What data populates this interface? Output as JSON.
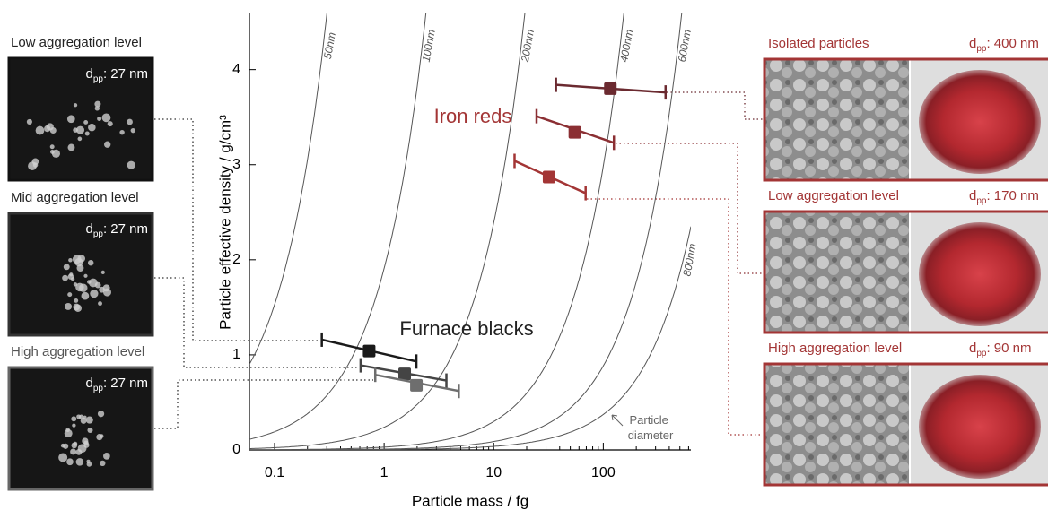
{
  "chart_data": {
    "type": "errorpoints",
    "xlabel": "Particle mass / fg",
    "ylabel": "Particle effective density / g/cm³",
    "xlog": true,
    "xlim": [
      0.059,
      630
    ],
    "ylim": [
      0,
      4.6
    ],
    "xticks": [
      0.1,
      1,
      10,
      100
    ],
    "xminorticks": [
      0.2,
      0.3,
      0.4,
      0.5,
      0.6,
      0.7,
      0.8,
      0.9,
      2,
      3,
      4,
      5,
      6,
      7,
      8,
      9,
      20,
      30,
      40,
      50,
      60,
      70,
      80,
      90,
      200,
      300,
      400,
      500,
      600
    ],
    "yticks": [
      0,
      1,
      2,
      3,
      4
    ],
    "diameters": [
      {
        "value": 50,
        "label": "50nm"
      },
      {
        "value": 100,
        "label": "100nm"
      },
      {
        "value": 200,
        "label": "200nm"
      },
      {
        "value": 400,
        "label": "400nm"
      },
      {
        "value": 600,
        "label": "600nm"
      },
      {
        "value": 800,
        "label": "800nm"
      }
    ],
    "annotation": "Particle diameter",
    "series": [
      {
        "name": "Furnace blacks",
        "label_color": "#222222",
        "points": [
          {
            "x": 0.73,
            "y": 1.04,
            "xerr": [
              0.27,
              1.97
            ],
            "yerr": [
              1.16,
              0.93
            ],
            "color": "#1a1a1a"
          },
          {
            "x": 1.54,
            "y": 0.8,
            "xerr": [
              0.61,
              3.7
            ],
            "yerr": [
              0.89,
              0.73
            ],
            "color": "#444444"
          },
          {
            "x": 1.97,
            "y": 0.68,
            "xerr": [
              0.83,
              4.8
            ],
            "yerr": [
              0.79,
              0.62
            ],
            "color": "#6e6e6e"
          }
        ]
      },
      {
        "name": "Iron reds",
        "label_color": "#a33535",
        "points": [
          {
            "x": 116,
            "y": 3.8,
            "xerr": [
              37,
              370
            ],
            "yerr": [
              3.84,
              3.76
            ],
            "color": "#6b2a30"
          },
          {
            "x": 55,
            "y": 3.34,
            "xerr": [
              24.6,
              125
            ],
            "yerr": [
              3.51,
              3.23
            ],
            "color": "#8b2f33"
          },
          {
            "x": 32,
            "y": 2.87,
            "xerr": [
              15.5,
              69
            ],
            "yerr": [
              3.04,
              2.7
            ],
            "color": "#a33535"
          }
        ]
      }
    ]
  },
  "left_panels": [
    {
      "label": "Low aggregation level",
      "d": "d",
      "sub": "pp",
      "rest": ": 27 nm"
    },
    {
      "label": "Mid aggregation level",
      "d": "d",
      "sub": "pp",
      "rest": ": 27 nm"
    },
    {
      "label": "High aggregation level",
      "d": "d",
      "sub": "pp",
      "rest": ": 27 nm"
    }
  ],
  "right_panels": [
    {
      "label": "Isolated particles",
      "d": "d",
      "sub": "pp",
      "rest": ": 400 nm"
    },
    {
      "label": "Low aggregation level",
      "d": "d",
      "sub": "pp",
      "rest": ": 170 nm"
    },
    {
      "label": "High aggregation level",
      "d": "d",
      "sub": "pp",
      "rest": ": 90 nm"
    }
  ]
}
